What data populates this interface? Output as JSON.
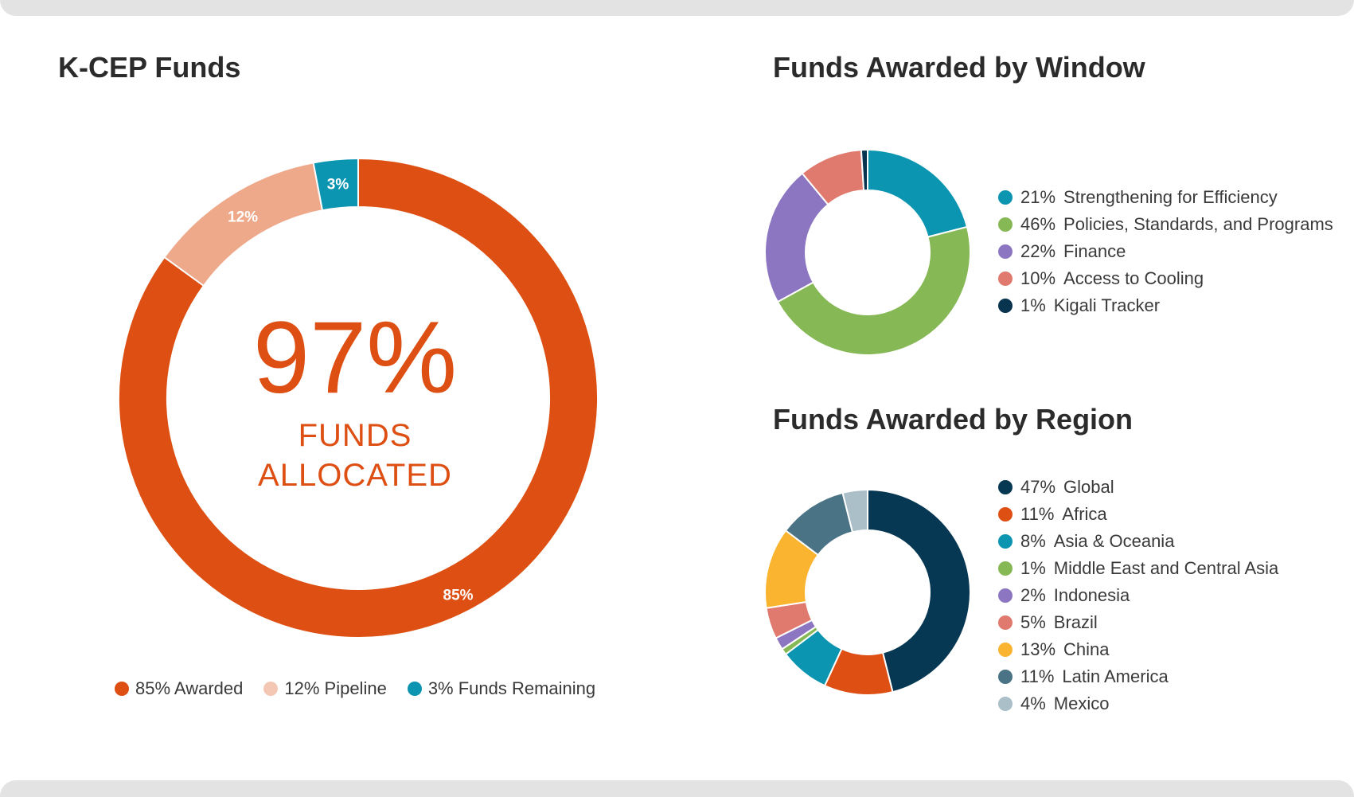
{
  "chart_data": [
    {
      "type": "pie",
      "donut": true,
      "title": "K-CEP Funds",
      "center_value": "97%",
      "center_label": [
        "FUNDS",
        "ALLOCATED"
      ],
      "series": [
        {
          "name": "Awarded",
          "value": 85,
          "pct_label": "85%",
          "legend": "85% Awarded",
          "color": "#dd4f12"
        },
        {
          "name": "Pipeline",
          "value": 12,
          "pct_label": "12%",
          "legend": "12% Pipeline",
          "color": "#eea98a"
        },
        {
          "name": "Funds Remaining",
          "value": 3,
          "pct_label": "3%",
          "legend": "3% Funds Remaining",
          "color": "#0b95b0"
        }
      ],
      "legend_position": "bottom"
    },
    {
      "type": "pie",
      "donut": true,
      "title": "Funds Awarded by Window",
      "series": [
        {
          "name": "Strengthening for Efficiency",
          "value": 21,
          "pct_label": "21%",
          "color": "#0b95b0"
        },
        {
          "name": "Policies, Standards, and Programs",
          "value": 46,
          "pct_label": "46%",
          "color": "#86b855"
        },
        {
          "name": "Finance",
          "value": 22,
          "pct_label": "22%",
          "color": "#8c76c1"
        },
        {
          "name": "Access to Cooling",
          "value": 10,
          "pct_label": "10%",
          "color": "#e07a6e"
        },
        {
          "name": "Kigali Tracker",
          "value": 1,
          "pct_label": "1%",
          "color": "#07344f"
        }
      ],
      "legend_position": "right"
    },
    {
      "type": "pie",
      "donut": true,
      "title": "Funds Awarded by Region",
      "series": [
        {
          "name": "Global",
          "value": 47,
          "pct_label": "47%",
          "color": "#073853"
        },
        {
          "name": "Africa",
          "value": 11,
          "pct_label": "11%",
          "color": "#dd4f12"
        },
        {
          "name": "Asia & Oceania",
          "value": 8,
          "pct_label": "8%",
          "color": "#0b95b0"
        },
        {
          "name": "Middle East and Central Asia",
          "value": 1,
          "pct_label": "1%",
          "color": "#86b855"
        },
        {
          "name": "Indonesia",
          "value": 2,
          "pct_label": "2%",
          "color": "#8c76c1"
        },
        {
          "name": "Brazil",
          "value": 5,
          "pct_label": "5%",
          "color": "#e07a6e"
        },
        {
          "name": "China",
          "value": 13,
          "pct_label": "13%",
          "color": "#fbb430"
        },
        {
          "name": "Latin America",
          "value": 11,
          "pct_label": "11%",
          "color": "#4a7385"
        },
        {
          "name": "Mexico",
          "value": 4,
          "pct_label": "4%",
          "color": "#aabfc8"
        }
      ],
      "legend_position": "right"
    }
  ]
}
